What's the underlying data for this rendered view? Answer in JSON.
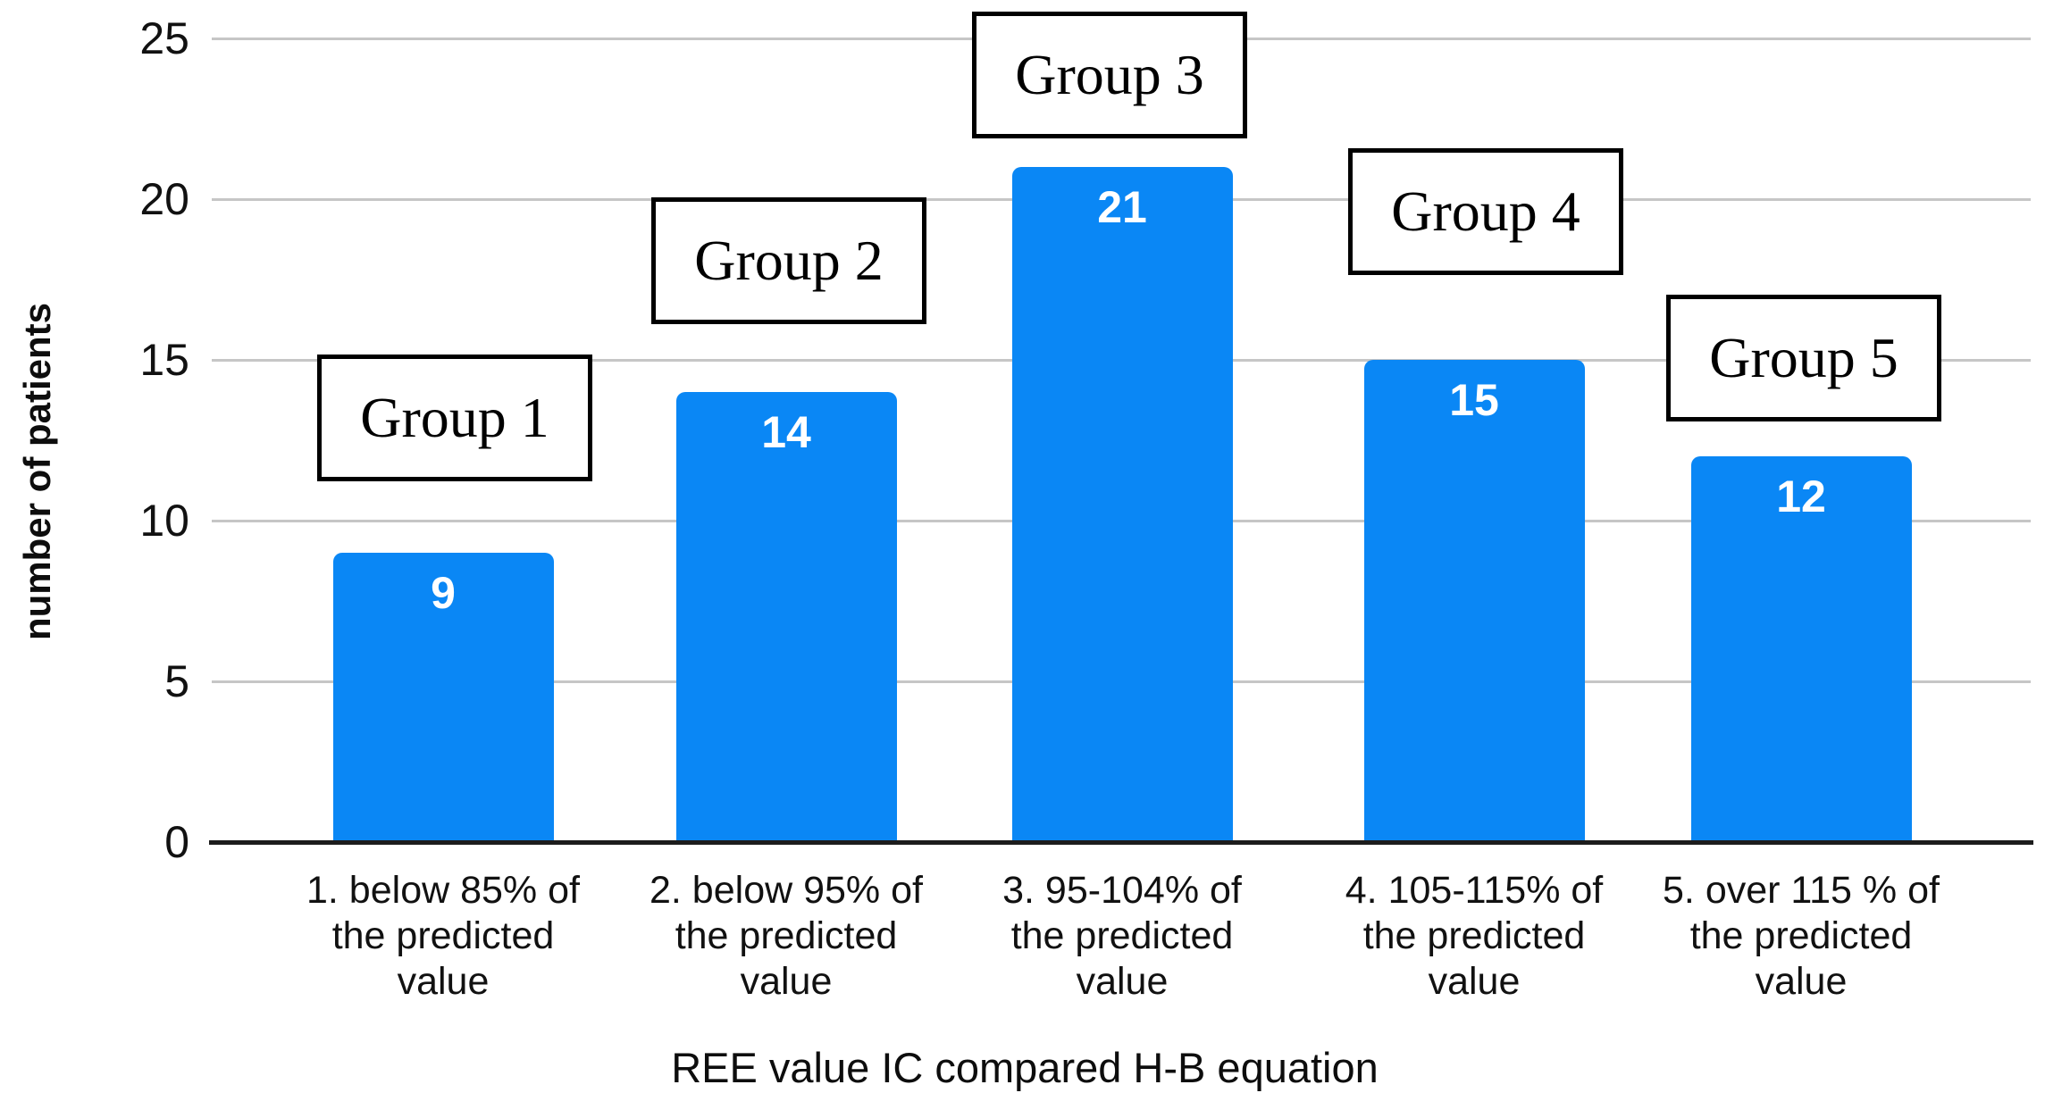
{
  "chart_data": {
    "type": "bar",
    "title": "",
    "xlabel": "REE value IC compared H-B equation",
    "ylabel": "number of patients",
    "ylim": [
      0,
      25
    ],
    "yticks": [
      0,
      5,
      10,
      15,
      20,
      25
    ],
    "grid": "horizontal gridlines on, light gray",
    "legend_position": "none",
    "bar_color": "#0a87f5",
    "bar_value_color": "#ffffff",
    "categories": [
      "1. below 85% of the predicted value",
      "2. below 95% of the predicted value",
      "3. 95-104% of the predicted value",
      "4. 105-115% of the predicted value",
      "5. over 115 % of the predicted value"
    ],
    "category_lines": [
      [
        "1. below 85% of",
        "the predicted",
        "value"
      ],
      [
        "2. below 95% of",
        "the predicted",
        "value"
      ],
      [
        "3. 95-104% of",
        "the predicted",
        "value"
      ],
      [
        "4. 105-115% of",
        "the predicted",
        "value"
      ],
      [
        "5. over 115 % of",
        "the predicted",
        "value"
      ]
    ],
    "values": [
      9,
      14,
      21,
      15,
      12
    ],
    "annotations": [
      "Group 1",
      "Group 2",
      "Group 3",
      "Group 4",
      "Group 5"
    ]
  }
}
